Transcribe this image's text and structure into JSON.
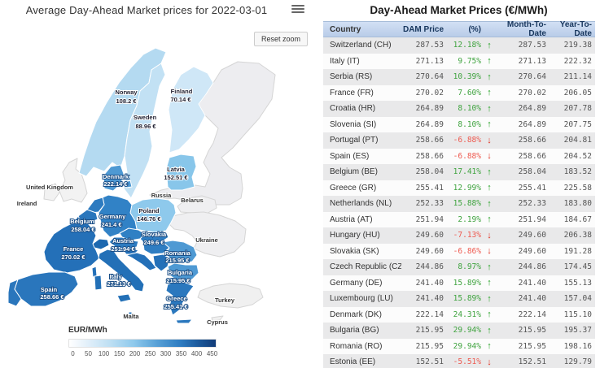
{
  "map_panel": {
    "title": "Average Day-Ahead Market prices for 2022-03-01",
    "reset_zoom_label": "Reset zoom",
    "legend": {
      "title": "EUR/MWh",
      "ticks": [
        "0",
        "50",
        "100",
        "150",
        "200",
        "250",
        "300",
        "350",
        "400",
        "450"
      ]
    },
    "countries": [
      {
        "id": "norway",
        "name": "Norway",
        "price": "108.2 €",
        "text": "dark",
        "color": "#b4daf1"
      },
      {
        "id": "sweden",
        "name": "Sweden",
        "price": "88.96 €",
        "text": "dark",
        "color": "#c2e1f4"
      },
      {
        "id": "finland",
        "name": "Finland",
        "price": "70.14 €",
        "text": "dark",
        "color": "#cfe7f7"
      },
      {
        "id": "denmark",
        "name": "Denmark",
        "price": "222.14 €",
        "text": "white",
        "color": "#4e99d3"
      },
      {
        "id": "latvia",
        "name": "Latvia",
        "price": "152.51 €",
        "text": "dark",
        "color": "#88c6ea"
      },
      {
        "id": "poland",
        "name": "Poland",
        "price": "146.76 €",
        "text": "dark",
        "color": "#8ec9ec"
      },
      {
        "id": "germany",
        "name": "Germany",
        "price": "241.4 €",
        "text": "white",
        "color": "#3182c6"
      },
      {
        "id": "belgium",
        "name": "Belgium",
        "price": "258.04 €",
        "text": "white",
        "color": "#2a76bc"
      },
      {
        "id": "netherlands",
        "name": "",
        "price": "",
        "text": "white",
        "color": "#2d7bc0"
      },
      {
        "id": "france",
        "name": "France",
        "price": "270.02 €",
        "text": "white",
        "color": "#2470b8"
      },
      {
        "id": "switzerland",
        "name": "",
        "price": "",
        "text": "white",
        "color": "#1d68af"
      },
      {
        "id": "austria",
        "name": "Austria",
        "price": "251.94 €",
        "text": "white",
        "color": "#2d7bc0"
      },
      {
        "id": "czech",
        "name": "",
        "price": "",
        "text": "white",
        "color": "#2f80c4"
      },
      {
        "id": "slovakia",
        "name": "Slovakia",
        "price": "249.6 €",
        "text": "white",
        "color": "#2e7dc2"
      },
      {
        "id": "hungary",
        "name": "",
        "price": "",
        "text": "white",
        "color": "#2e7dc2"
      },
      {
        "id": "slovenia",
        "name": "",
        "price": "",
        "text": "white",
        "color": "#2470b8"
      },
      {
        "id": "croatia",
        "name": "",
        "price": "",
        "text": "white",
        "color": "#2470b8"
      },
      {
        "id": "serbia",
        "name": "",
        "price": "",
        "text": "white",
        "color": "#2470b8"
      },
      {
        "id": "italy",
        "name": "Italy",
        "price": "271.13 €",
        "text": "white",
        "color": "#2370b7"
      },
      {
        "id": "spain",
        "name": "Spain",
        "price": "258.66 €",
        "text": "white",
        "color": "#2a76bc"
      },
      {
        "id": "portugal",
        "name": "",
        "price": "",
        "text": "white",
        "color": "#2a76bc"
      },
      {
        "id": "romania",
        "name": "Romania",
        "price": "215.95 €",
        "text": "white",
        "color": "#4e99d3"
      },
      {
        "id": "bulgaria",
        "name": "Bulgaria",
        "price": "215.95 €",
        "text": "white",
        "color": "#4e99d3"
      },
      {
        "id": "greece",
        "name": "Greece",
        "price": "255.41 €",
        "text": "white",
        "color": "#2b78be"
      },
      {
        "id": "malta",
        "name": "Malta",
        "price": "",
        "text": "neutral",
        "color": "#2a76bc"
      },
      {
        "id": "uk",
        "name": "United Kingdom",
        "price": "",
        "text": "neutral",
        "color": "#f2f2f2"
      },
      {
        "id": "ireland",
        "name": "Ireland",
        "price": "",
        "text": "neutral",
        "color": "#f2f2f2"
      },
      {
        "id": "russia",
        "name": "Russia",
        "price": "",
        "text": "neutral",
        "color": "#ededf0"
      },
      {
        "id": "belarus",
        "name": "Belarus",
        "price": "",
        "text": "neutral",
        "color": "#efeff1"
      },
      {
        "id": "ukraine",
        "name": "Ukraine",
        "price": "",
        "text": "neutral",
        "color": "#efeff1"
      },
      {
        "id": "turkey",
        "name": "Turkey",
        "price": "",
        "text": "neutral",
        "color": "#f0f0f0"
      },
      {
        "id": "cyprus",
        "name": "Cyprus",
        "price": "",
        "text": "neutral",
        "color": "#f0f0f0"
      }
    ]
  },
  "table_panel": {
    "title": "Day-Ahead Market Prices (€/MWh)",
    "columns": {
      "country": "Country",
      "dam": "DAM Price",
      "pct": "(%)",
      "mtd": "Month-To-Date",
      "ytd": "Year-To-Date"
    },
    "rows": [
      {
        "country": "Switzerland (CH)",
        "dam": "287.53",
        "pct": "12.18%",
        "dir": "up",
        "mtd": "287.53",
        "ytd": "219.38"
      },
      {
        "country": "Italy (IT)",
        "dam": "271.13",
        "pct": "9.75%",
        "dir": "up",
        "mtd": "271.13",
        "ytd": "222.32"
      },
      {
        "country": "Serbia (RS)",
        "dam": "270.64",
        "pct": "10.39%",
        "dir": "up",
        "mtd": "270.64",
        "ytd": "211.14"
      },
      {
        "country": "France (FR)",
        "dam": "270.02",
        "pct": "7.60%",
        "dir": "up",
        "mtd": "270.02",
        "ytd": "206.05"
      },
      {
        "country": "Croatia (HR)",
        "dam": "264.89",
        "pct": "8.10%",
        "dir": "up",
        "mtd": "264.89",
        "ytd": "207.78"
      },
      {
        "country": "Slovenia (SI)",
        "dam": "264.89",
        "pct": "8.10%",
        "dir": "up",
        "mtd": "264.89",
        "ytd": "207.75"
      },
      {
        "country": "Portugal (PT)",
        "dam": "258.66",
        "pct": "-6.88%",
        "dir": "down",
        "mtd": "258.66",
        "ytd": "204.81"
      },
      {
        "country": "Spain (ES)",
        "dam": "258.66",
        "pct": "-6.88%",
        "dir": "down",
        "mtd": "258.66",
        "ytd": "204.52"
      },
      {
        "country": "Belgium (BE)",
        "dam": "258.04",
        "pct": "17.41%",
        "dir": "up",
        "mtd": "258.04",
        "ytd": "183.52"
      },
      {
        "country": "Greece (GR)",
        "dam": "255.41",
        "pct": "12.99%",
        "dir": "up",
        "mtd": "255.41",
        "ytd": "225.58"
      },
      {
        "country": "Netherlands (NL)",
        "dam": "252.33",
        "pct": "15.88%",
        "dir": "up",
        "mtd": "252.33",
        "ytd": "183.80"
      },
      {
        "country": "Austria (AT)",
        "dam": "251.94",
        "pct": "2.19%",
        "dir": "up",
        "mtd": "251.94",
        "ytd": "184.67"
      },
      {
        "country": "Hungary (HU)",
        "dam": "249.60",
        "pct": "-7.13%",
        "dir": "down",
        "mtd": "249.60",
        "ytd": "206.38"
      },
      {
        "country": "Slovakia (SK)",
        "dam": "249.60",
        "pct": "-6.86%",
        "dir": "down",
        "mtd": "249.60",
        "ytd": "191.28"
      },
      {
        "country": "Czech Republic (CZ)",
        "dam": "244.86",
        "pct": "8.97%",
        "dir": "up",
        "mtd": "244.86",
        "ytd": "174.45"
      },
      {
        "country": "Germany (DE)",
        "dam": "241.40",
        "pct": "15.89%",
        "dir": "up",
        "mtd": "241.40",
        "ytd": "155.13"
      },
      {
        "country": "Luxembourg (LU)",
        "dam": "241.40",
        "pct": "15.89%",
        "dir": "up",
        "mtd": "241.40",
        "ytd": "157.04"
      },
      {
        "country": "Denmark (DK)",
        "dam": "222.14",
        "pct": "24.31%",
        "dir": "up",
        "mtd": "222.14",
        "ytd": "115.10"
      },
      {
        "country": "Bulgaria (BG)",
        "dam": "215.95",
        "pct": "29.94%",
        "dir": "up",
        "mtd": "215.95",
        "ytd": "195.37"
      },
      {
        "country": "Romania (RO)",
        "dam": "215.95",
        "pct": "29.94%",
        "dir": "up",
        "mtd": "215.95",
        "ytd": "198.16"
      },
      {
        "country": "Estonia (EE)",
        "dam": "152.51",
        "pct": "-5.51%",
        "dir": "down",
        "mtd": "152.51",
        "ytd": "129.79"
      }
    ]
  },
  "chart_data": {
    "type": "heatmap",
    "subtype": "choropleth-map",
    "title": "Average Day-Ahead Market prices for 2022-03-01",
    "unit": "EUR/MWh",
    "legend_range": [
      0,
      450
    ],
    "legend_ticks": [
      0,
      50,
      100,
      150,
      200,
      250,
      300,
      350,
      400,
      450
    ],
    "values": {
      "Switzerland": 287.53,
      "Italy": 271.13,
      "Serbia": 270.64,
      "France": 270.02,
      "Croatia": 264.89,
      "Slovenia": 264.89,
      "Portugal": 258.66,
      "Spain": 258.66,
      "Belgium": 258.04,
      "Greece": 255.41,
      "Netherlands": 252.33,
      "Austria": 251.94,
      "Hungary": 249.6,
      "Slovakia": 249.6,
      "Czech Republic": 244.86,
      "Germany": 241.4,
      "Luxembourg": 241.4,
      "Denmark": 222.14,
      "Bulgaria": 215.95,
      "Romania": 215.95,
      "Estonia": 152.51,
      "Latvia": 152.51,
      "Poland": 146.76,
      "Norway": 108.2,
      "Sweden": 88.96,
      "Finland": 70.14
    }
  }
}
